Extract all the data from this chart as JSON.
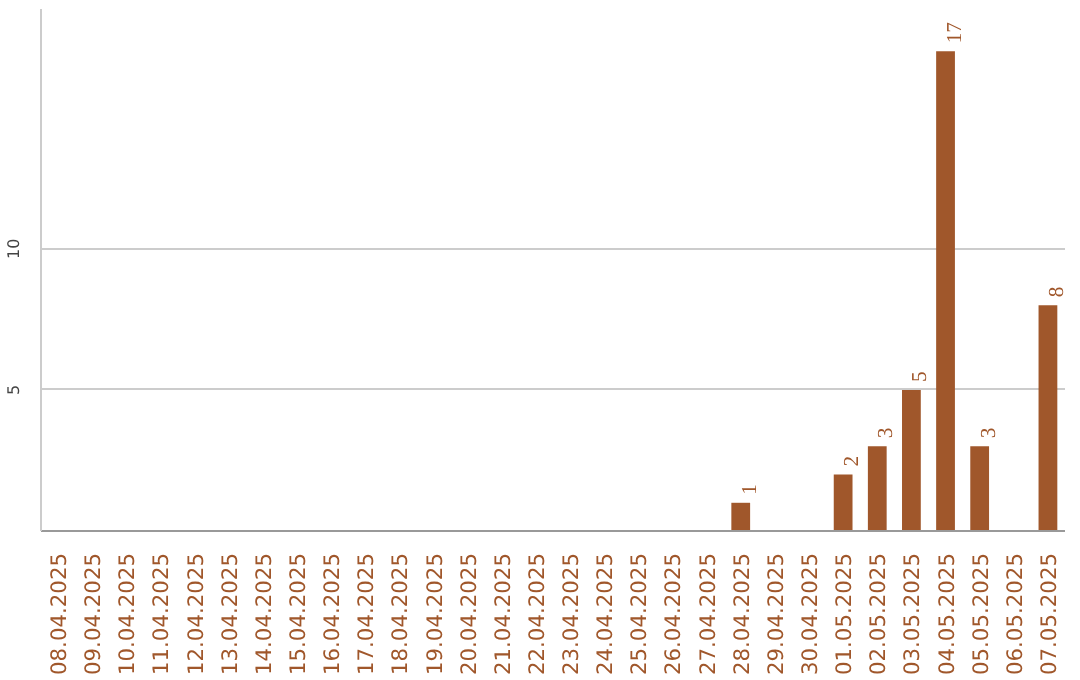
{
  "chart_data": {
    "type": "bar",
    "categories": [
      "08.04.2025",
      "09.04.2025",
      "10.04.2025",
      "11.04.2025",
      "12.04.2025",
      "13.04.2025",
      "14.04.2025",
      "15.04.2025",
      "16.04.2025",
      "17.04.2025",
      "18.04.2025",
      "19.04.2025",
      "20.04.2025",
      "21.04.2025",
      "22.04.2025",
      "23.04.2025",
      "24.04.2025",
      "25.04.2025",
      "26.04.2025",
      "27.04.2025",
      "28.04.2025",
      "29.04.2025",
      "30.04.2025",
      "01.05.2025",
      "02.05.2025",
      "03.05.2025",
      "04.05.2025",
      "05.05.2025",
      "06.05.2025",
      "07.05.2025"
    ],
    "values": [
      0,
      0,
      0,
      0,
      0,
      0,
      0,
      0,
      0,
      0,
      0,
      0,
      0,
      0,
      0,
      0,
      0,
      0,
      0,
      0,
      1,
      0,
      0,
      2,
      3,
      5,
      17,
      3,
      0,
      8
    ],
    "value_labels": [
      null,
      null,
      null,
      null,
      null,
      null,
      null,
      null,
      null,
      null,
      null,
      null,
      null,
      null,
      null,
      null,
      null,
      null,
      null,
      null,
      "1",
      null,
      null,
      "2",
      "3",
      "5",
      "17",
      "3",
      null,
      "8"
    ],
    "color": "#a0572b",
    "ylim": [
      0,
      18.5
    ],
    "yticks": [
      5,
      10
    ],
    "grid": "y"
  }
}
